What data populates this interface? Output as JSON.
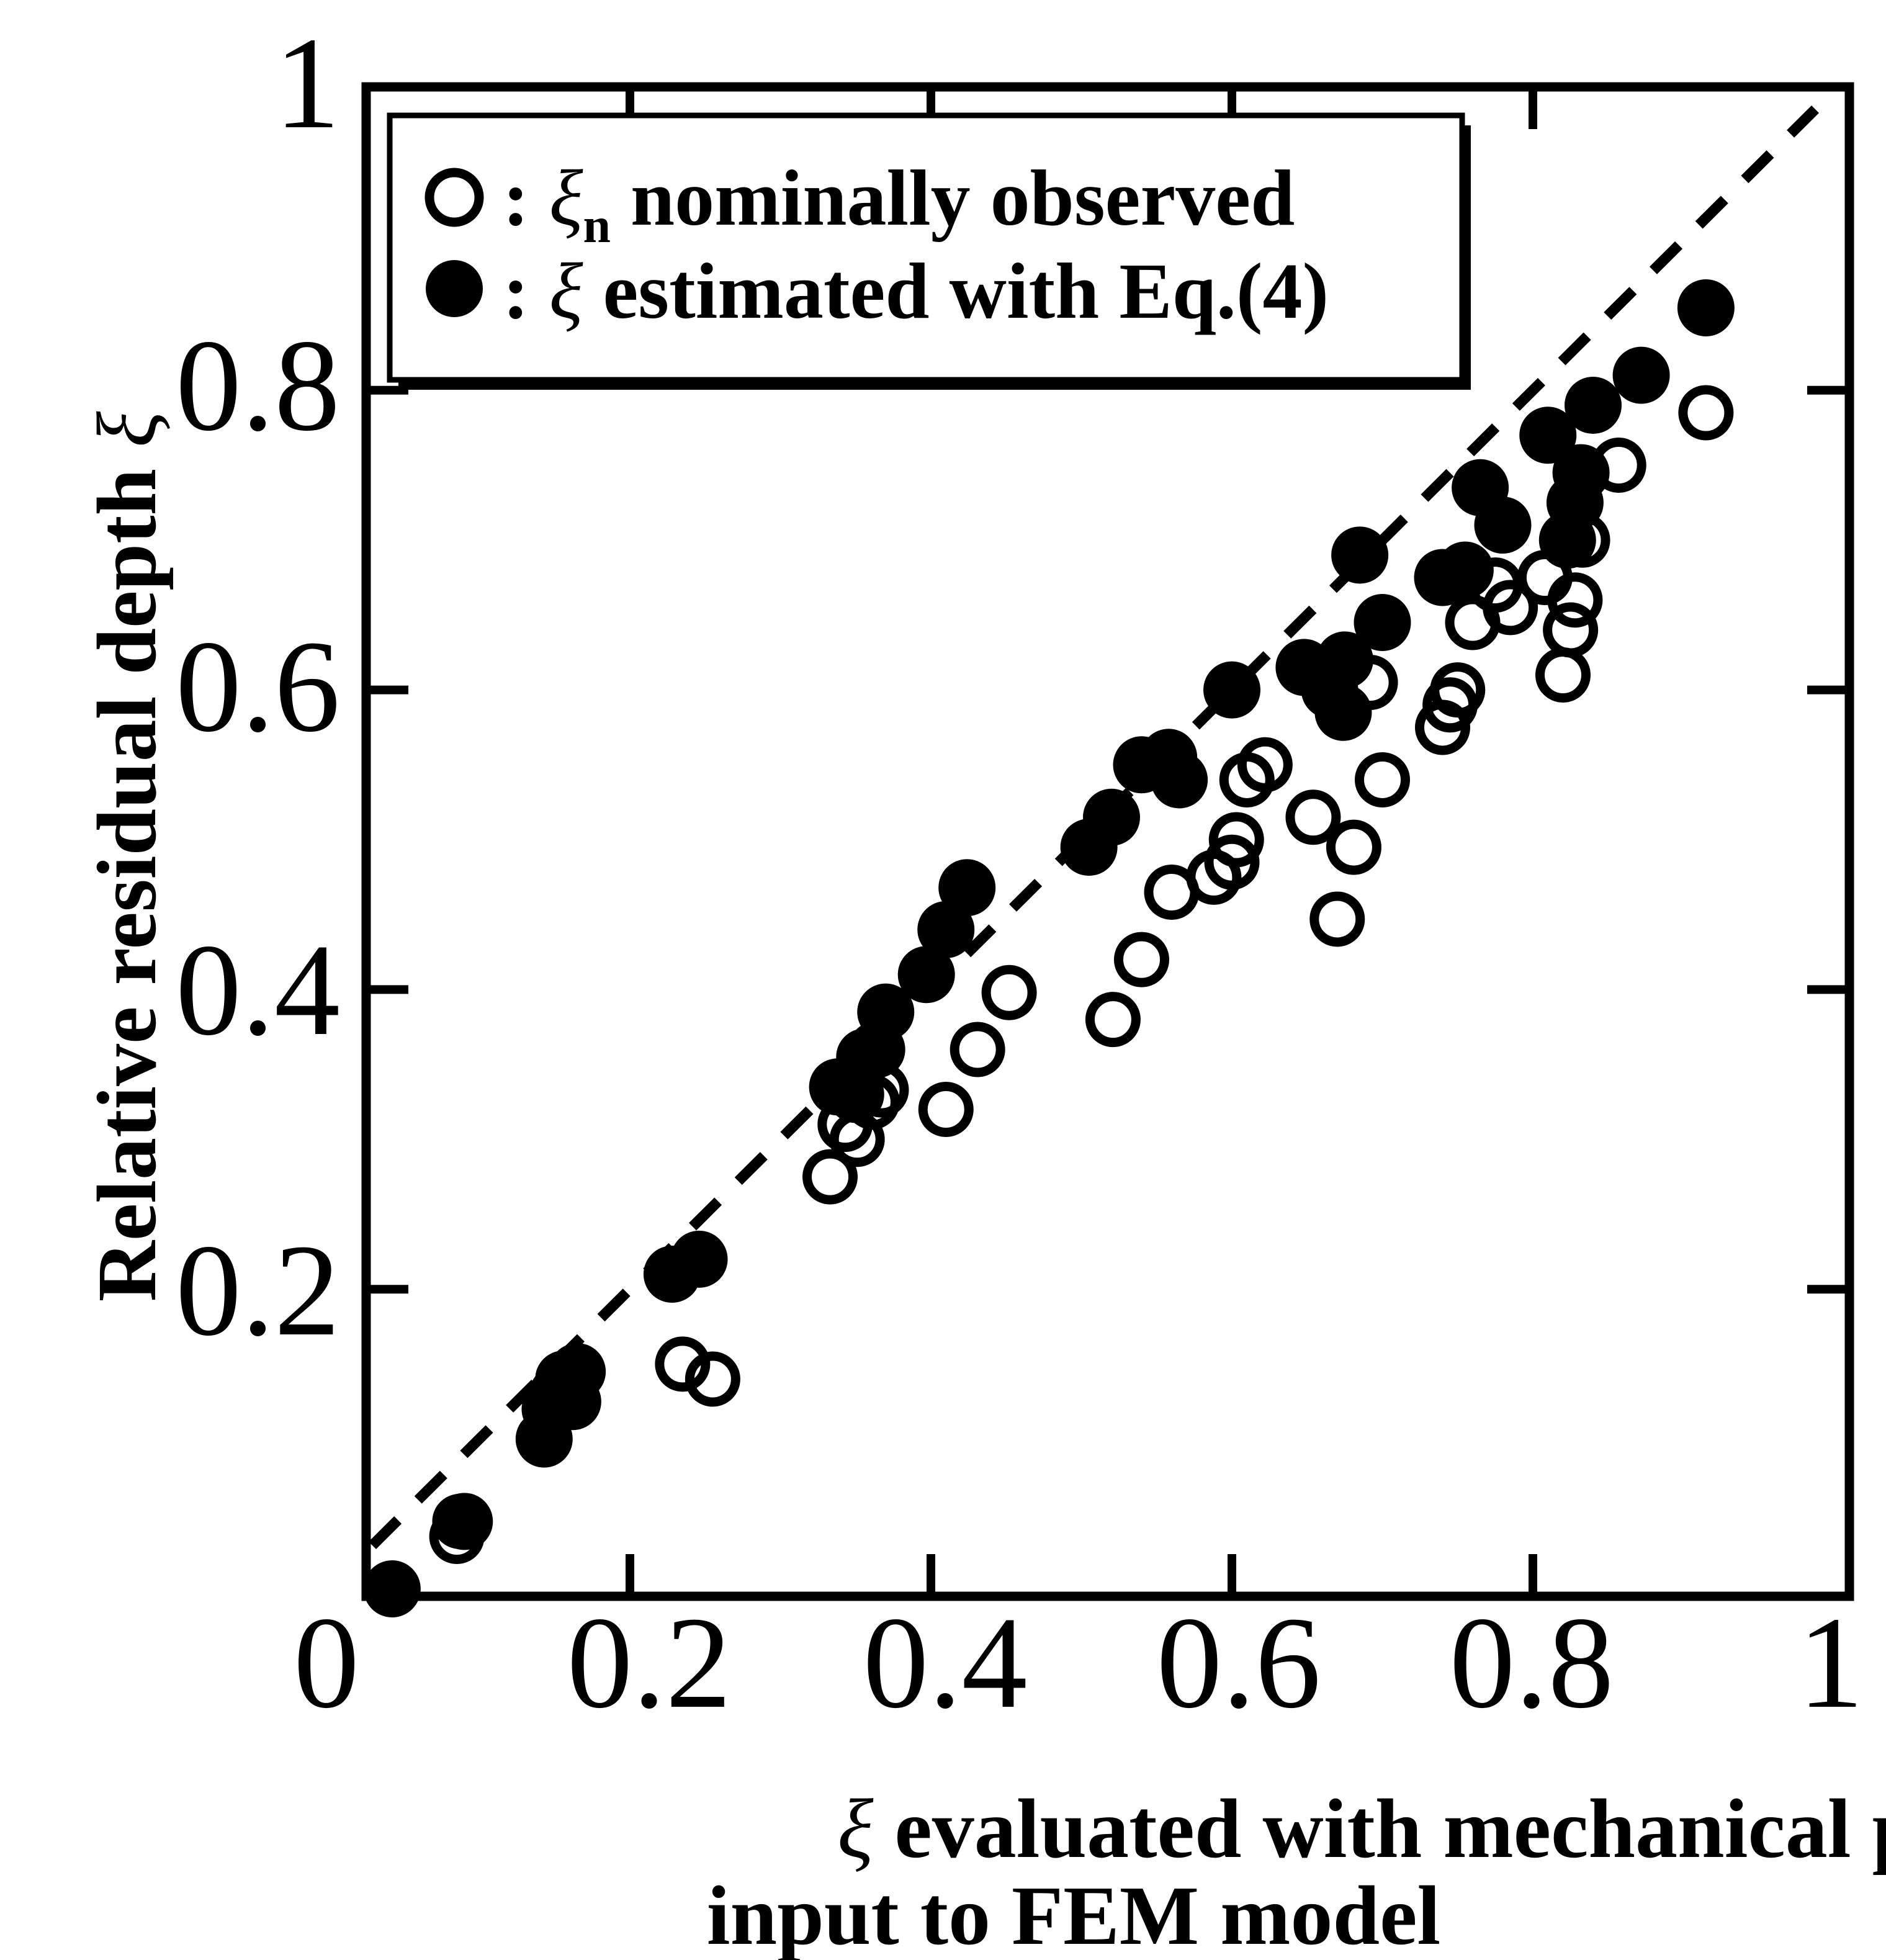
{
  "chart_data": {
    "type": "scatter",
    "title": "",
    "xlabel_symbol": "ξ",
    "xlabel_line1": " evaluated with mechanical properties",
    "xlabel_line2": "input to FEM model",
    "ylabel_text": "Relative residual depth ",
    "ylabel_symbol": "ξ",
    "xlim": [
      0,
      1
    ],
    "ylim": [
      0,
      1
    ],
    "x_ticks": [
      0.2,
      0.4,
      0.6,
      0.8
    ],
    "y_ticks": [
      0.2,
      0.4,
      0.6,
      0.8
    ],
    "x_tick_labels": [
      "0",
      "0.2",
      "0.4",
      "0.6",
      "0.8",
      "1"
    ],
    "y_tick_labels": [
      "0.2",
      "0.4",
      "0.6",
      "0.8",
      "1"
    ],
    "reference_line": {
      "style": "dashed",
      "from": [
        0,
        0
      ],
      "to": [
        1,
        1
      ]
    },
    "legend": {
      "placement": "top-left",
      "entries": [
        {
          "marker": "open-circle",
          "prefix": " : ",
          "symbol": "ξ",
          "subscript": "n",
          "text": " nominally observed"
        },
        {
          "marker": "filled-circle",
          "prefix": " : ",
          "symbol": "ξ",
          "subscript": "",
          "text": " estimated with Eq.(4)"
        }
      ]
    },
    "series": [
      {
        "name": "nominally observed",
        "marker": "open-circle",
        "points": [
          [
            0.085,
            0.035
          ],
          [
            0.087,
            0.045
          ],
          [
            0.235,
            0.15
          ],
          [
            0.255,
            0.14
          ],
          [
            0.333,
            0.275
          ],
          [
            0.343,
            0.31
          ],
          [
            0.351,
            0.3
          ],
          [
            0.361,
            0.325
          ],
          [
            0.367,
            0.333
          ],
          [
            0.41,
            0.32
          ],
          [
            0.431,
            0.36
          ],
          [
            0.452,
            0.398
          ],
          [
            0.521,
            0.38
          ],
          [
            0.54,
            0.42
          ],
          [
            0.56,
            0.465
          ],
          [
            0.588,
            0.475
          ],
          [
            0.6,
            0.485
          ],
          [
            0.603,
            0.5
          ],
          [
            0.61,
            0.54
          ],
          [
            0.622,
            0.55
          ],
          [
            0.654,
            0.515
          ],
          [
            0.67,
            0.447
          ],
          [
            0.681,
            0.495
          ],
          [
            0.692,
            0.605
          ],
          [
            0.7,
            0.54
          ],
          [
            0.74,
            0.575
          ],
          [
            0.745,
            0.59
          ],
          [
            0.75,
            0.6
          ],
          [
            0.76,
            0.645
          ],
          [
            0.775,
            0.67
          ],
          [
            0.785,
            0.655
          ],
          [
            0.808,
            0.675
          ],
          [
            0.82,
            0.61
          ],
          [
            0.825,
            0.64
          ],
          [
            0.828,
            0.66
          ],
          [
            0.833,
            0.7
          ],
          [
            0.857,
            0.75
          ],
          [
            0.915,
            0.785
          ]
        ]
      },
      {
        "name": "estimated with Eq.(4)",
        "marker": "filled-circle",
        "points": [
          [
            0.042,
            0.0
          ],
          [
            0.09,
            0.045
          ],
          [
            0.143,
            0.1
          ],
          [
            0.147,
            0.12
          ],
          [
            0.152,
            0.13
          ],
          [
            0.156,
            0.14
          ],
          [
            0.162,
            0.125
          ],
          [
            0.165,
            0.145
          ],
          [
            0.228,
            0.21
          ],
          [
            0.246,
            0.22
          ],
          [
            0.338,
            0.335
          ],
          [
            0.35,
            0.33
          ],
          [
            0.356,
            0.355
          ],
          [
            0.364,
            0.36
          ],
          [
            0.37,
            0.385
          ],
          [
            0.397,
            0.41
          ],
          [
            0.41,
            0.44
          ],
          [
            0.424,
            0.468
          ],
          [
            0.505,
            0.495
          ],
          [
            0.52,
            0.515
          ],
          [
            0.54,
            0.55
          ],
          [
            0.558,
            0.555
          ],
          [
            0.565,
            0.54
          ],
          [
            0.6,
            0.6
          ],
          [
            0.648,
            0.615
          ],
          [
            0.665,
            0.6
          ],
          [
            0.674,
            0.585
          ],
          [
            0.675,
            0.62
          ],
          [
            0.685,
            0.69
          ],
          [
            0.7,
            0.645
          ],
          [
            0.74,
            0.675
          ],
          [
            0.755,
            0.68
          ],
          [
            0.765,
            0.735
          ],
          [
            0.78,
            0.71
          ],
          [
            0.81,
            0.77
          ],
          [
            0.823,
            0.7
          ],
          [
            0.828,
            0.725
          ],
          [
            0.832,
            0.745
          ],
          [
            0.84,
            0.79
          ],
          [
            0.872,
            0.81
          ],
          [
            0.915,
            0.855
          ]
        ]
      }
    ]
  }
}
